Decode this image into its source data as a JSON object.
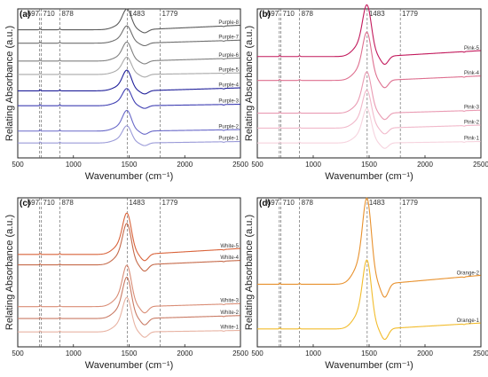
{
  "chart_data": [
    {
      "panel": "(a)",
      "type": "line",
      "xlabel": "Wavenumber (cm⁻¹)",
      "ylabel": "Relating Absorbance (a.u.)",
      "xlim": [
        500,
        2500
      ],
      "xticks": [
        "500",
        "1000",
        "1500",
        "2000",
        "2500"
      ],
      "reference_lines": [
        "697",
        "710",
        "878",
        "1483",
        "1779"
      ],
      "series": [
        {
          "name": "Purple-8",
          "color": "#5a5a5a",
          "baseline": 0.86,
          "peak": 0.12,
          "shift": 0.03
        },
        {
          "name": "Purple-7",
          "color": "#6e6e6e",
          "baseline": 0.77,
          "peak": 0.1,
          "shift": 0.02
        },
        {
          "name": "Purple-6",
          "color": "#808080",
          "baseline": 0.65,
          "peak": 0.11,
          "shift": 0.02
        },
        {
          "name": "Purple-5",
          "color": "#a9a9a9",
          "baseline": 0.56,
          "peak": 0.1,
          "shift": 0.01
        },
        {
          "name": "Purple-4",
          "color": "#1f1f9a",
          "baseline": 0.45,
          "peak": 0.12,
          "shift": 0.02
        },
        {
          "name": "Purple-3",
          "color": "#3e3eb2",
          "baseline": 0.35,
          "peak": 0.1,
          "shift": 0.01
        },
        {
          "name": "Purple-2",
          "color": "#6868c8",
          "baseline": 0.18,
          "peak": 0.12,
          "shift": 0.01
        },
        {
          "name": "Purple-1",
          "color": "#9a9ad8",
          "baseline": 0.1,
          "peak": 0.1,
          "shift": 0.01
        }
      ]
    },
    {
      "panel": "(b)",
      "type": "line",
      "xlabel": "Wavenumber (cm⁻¹)",
      "ylabel": "Relating Absorbance (a.u.)",
      "xlim": [
        500,
        2500
      ],
      "xticks": [
        "500",
        "1000",
        "1500",
        "2000",
        "2500"
      ],
      "reference_lines": [
        "697",
        "710",
        "878",
        "1483",
        "1779"
      ],
      "series": [
        {
          "name": "Pink-5",
          "color": "#c2185b",
          "baseline": 0.68,
          "peak": 0.3,
          "shift": 0.04
        },
        {
          "name": "Pink-4",
          "color": "#de6f8f",
          "baseline": 0.52,
          "peak": 0.28,
          "shift": 0.03
        },
        {
          "name": "Pink-3",
          "color": "#e99ab2",
          "baseline": 0.3,
          "peak": 0.24,
          "shift": 0.02
        },
        {
          "name": "Pink-2",
          "color": "#f1b8ca",
          "baseline": 0.2,
          "peak": 0.22,
          "shift": 0.02
        },
        {
          "name": "Pink-1",
          "color": "#f6d3de",
          "baseline": 0.1,
          "peak": 0.2,
          "shift": 0.01
        }
      ]
    },
    {
      "panel": "(c)",
      "type": "line",
      "xlabel": "Wavenumber (cm⁻¹)",
      "ylabel": "Relating Absorbance (a.u.)",
      "xlim": [
        500,
        2500
      ],
      "xticks": [
        "500",
        "1000",
        "1500",
        "2000",
        "2500"
      ],
      "reference_lines": [
        "697",
        "710",
        "878",
        "1483",
        "1779"
      ],
      "series": [
        {
          "name": "White-5",
          "color": "#d9633a",
          "baseline": 0.62,
          "peak": 0.24,
          "shift": 0.04
        },
        {
          "name": "White-4",
          "color": "#c56a4a",
          "baseline": 0.55,
          "peak": 0.24,
          "shift": 0.03
        },
        {
          "name": "White-3",
          "color": "#d98d76",
          "baseline": 0.27,
          "peak": 0.24,
          "shift": 0.02
        },
        {
          "name": "White-2",
          "color": "#c97b65",
          "baseline": 0.19,
          "peak": 0.24,
          "shift": 0.02
        },
        {
          "name": "White-1",
          "color": "#e8b3a3",
          "baseline": 0.1,
          "peak": 0.2,
          "shift": 0.01
        }
      ]
    },
    {
      "panel": "(d)",
      "type": "line",
      "xlabel": "Wavenumber (cm⁻¹)",
      "ylabel": "Relating Absorbance (a.u.)",
      "xlim": [
        500,
        2500
      ],
      "xticks": [
        "500",
        "1000",
        "1500",
        "2000",
        "2500"
      ],
      "reference_lines": [
        "697",
        "710",
        "878",
        "1483",
        "1779"
      ],
      "series": [
        {
          "name": "Orange-2",
          "color": "#e8912d",
          "baseline": 0.42,
          "peak": 0.5,
          "shift": 0.06
        },
        {
          "name": "Orange-1",
          "color": "#f2bc2c",
          "baseline": 0.12,
          "peak": 0.4,
          "shift": 0.04
        }
      ]
    }
  ]
}
